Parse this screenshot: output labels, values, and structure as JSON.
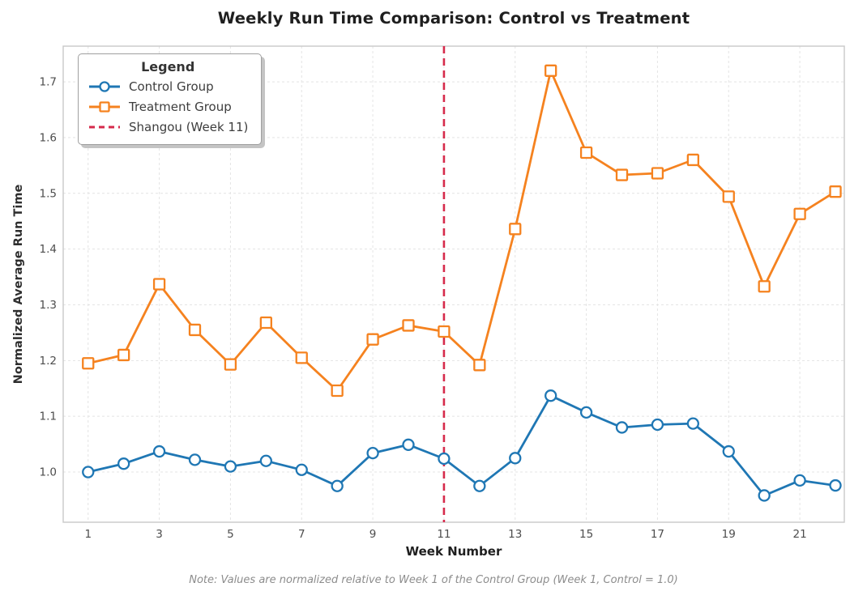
{
  "chart_data": {
    "type": "line",
    "title": "Weekly Run Time Comparison: Control vs Treatment",
    "xlabel": "Week Number",
    "ylabel": "Normalized Average Run Time",
    "x": [
      1,
      2,
      3,
      4,
      5,
      6,
      7,
      8,
      9,
      10,
      11,
      12,
      13,
      14,
      15,
      16,
      17,
      18,
      19,
      20,
      21,
      22
    ],
    "series": [
      {
        "name": "Control Group",
        "color": "#1f77b4",
        "marker": "circle",
        "values": [
          1.0,
          1.015,
          1.037,
          1.022,
          1.01,
          1.02,
          1.004,
          0.975,
          1.034,
          1.049,
          1.024,
          0.975,
          1.025,
          1.137,
          1.107,
          1.08,
          1.085,
          1.087,
          1.037,
          0.958,
          0.985,
          0.976
        ]
      },
      {
        "name": "Treatment Group",
        "color": "#f5821f",
        "marker": "square",
        "values": [
          1.195,
          1.21,
          1.337,
          1.255,
          1.193,
          1.268,
          1.205,
          1.146,
          1.238,
          1.263,
          1.252,
          1.192,
          1.436,
          1.72,
          1.573,
          1.533,
          1.536,
          1.56,
          1.494,
          1.333,
          1.463,
          1.503
        ]
      }
    ],
    "vline": {
      "x": 11,
      "label": "Shangou (Week 11)",
      "color": "#d62a4b",
      "style": "dashed"
    },
    "x_ticks": [
      1,
      3,
      5,
      7,
      9,
      11,
      13,
      15,
      17,
      19,
      21
    ],
    "y_ticks": [
      1.0,
      1.1,
      1.2,
      1.3,
      1.4,
      1.5,
      1.6,
      1.7
    ],
    "xlim": [
      0.3,
      22.25
    ],
    "ylim": [
      0.91,
      1.764
    ],
    "grid": true,
    "legend_position": "upper left"
  },
  "legend": {
    "title": "Legend",
    "items": [
      {
        "label": "Control Group",
        "swatch": "line-circle",
        "color": "#1f77b4"
      },
      {
        "label": "Treatment Group",
        "swatch": "line-square",
        "color": "#f5821f"
      },
      {
        "label": "Shangou (Week 11)",
        "swatch": "dashed-line",
        "color": "#d62a4b"
      }
    ]
  },
  "note": "Note: Values are normalized relative to Week 1 of the Control Group (Week 1, Control = 1.0)"
}
